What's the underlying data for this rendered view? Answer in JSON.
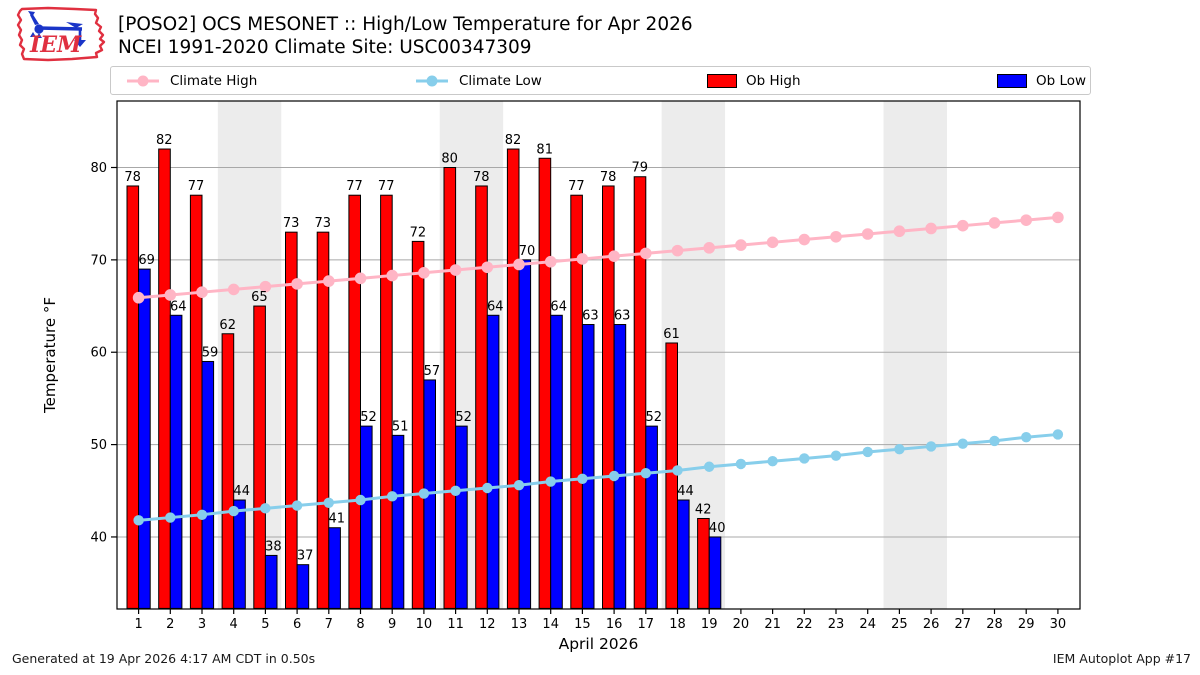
{
  "logo": {
    "text": "IEM"
  },
  "header": {
    "title_line1": "[POSO2] OCS MESONET :: High/Low Temperature for Apr 2026",
    "title_line2": "NCEI 1991-2020 Climate Site: USC00347309"
  },
  "legend": {
    "items": [
      {
        "label": "Climate High",
        "type": "line",
        "color": "#FFB5C5"
      },
      {
        "label": "Climate Low",
        "type": "line",
        "color": "#87CEEB"
      },
      {
        "label": "Ob High",
        "type": "rect",
        "color": "#FF0000"
      },
      {
        "label": "Ob Low",
        "type": "rect",
        "color": "#0000FF"
      }
    ]
  },
  "footer": {
    "left": "Generated at 19 Apr 2026 4:17 AM CDT in 0.50s",
    "right": "IEM Autoplot App #17"
  },
  "chart_data": {
    "type": "bar",
    "title": "[POSO2] OCS MESONET :: High/Low Temperature for Apr 2026",
    "subtitle": "NCEI 1991-2020 Climate Site: USC00347309",
    "xlabel": "April 2026",
    "ylabel": "Temperature °F",
    "x": [
      1,
      2,
      3,
      4,
      5,
      6,
      7,
      8,
      9,
      10,
      11,
      12,
      13,
      14,
      15,
      16,
      17,
      18,
      19,
      20,
      21,
      22,
      23,
      24,
      25,
      26,
      27,
      28,
      29,
      30
    ],
    "ylim": [
      32.2,
      87.2
    ],
    "yticks": [
      40,
      50,
      60,
      70,
      80
    ],
    "grid": "horizontal",
    "legend_position": "top",
    "weekend_bands": [
      [
        3.5,
        5.5
      ],
      [
        10.5,
        12.5
      ],
      [
        17.5,
        19.5
      ],
      [
        24.5,
        26.5
      ]
    ],
    "band_color": "#ececec",
    "grid_color": "#a8a8a8",
    "series": [
      {
        "name": "Ob High",
        "type": "bar",
        "color": "#FF0000",
        "values": [
          78,
          82,
          77,
          62,
          65,
          73,
          73,
          77,
          77,
          72,
          80,
          78,
          82,
          81,
          77,
          78,
          79,
          61,
          42,
          null,
          null,
          null,
          null,
          null,
          null,
          null,
          null,
          null,
          null,
          null
        ]
      },
      {
        "name": "Ob Low",
        "type": "bar",
        "color": "#0000FF",
        "values": [
          69,
          64,
          59,
          44,
          38,
          37,
          41,
          52,
          51,
          57,
          52,
          64,
          70,
          64,
          63,
          63,
          52,
          44,
          40,
          null,
          null,
          null,
          null,
          null,
          null,
          null,
          null,
          null,
          null,
          null
        ]
      },
      {
        "name": "Climate High",
        "type": "line",
        "color": "#FFB5C5",
        "values": [
          65.9,
          66.2,
          66.5,
          66.8,
          67.1,
          67.4,
          67.7,
          68.0,
          68.3,
          68.6,
          68.9,
          69.2,
          69.5,
          69.8,
          70.1,
          70.4,
          70.7,
          71.0,
          71.3,
          71.6,
          71.9,
          72.2,
          72.5,
          72.8,
          73.1,
          73.4,
          73.7,
          74.0,
          74.3,
          74.6
        ]
      },
      {
        "name": "Climate Low",
        "type": "line",
        "color": "#87CEEB",
        "values": [
          41.8,
          42.1,
          42.4,
          42.8,
          43.1,
          43.4,
          43.7,
          44.0,
          44.4,
          44.7,
          45.0,
          45.3,
          45.6,
          46.0,
          46.3,
          46.6,
          46.9,
          47.2,
          47.6,
          47.9,
          48.2,
          48.5,
          48.8,
          49.2,
          49.5,
          49.8,
          50.1,
          50.4,
          50.8,
          51.1
        ]
      }
    ]
  }
}
